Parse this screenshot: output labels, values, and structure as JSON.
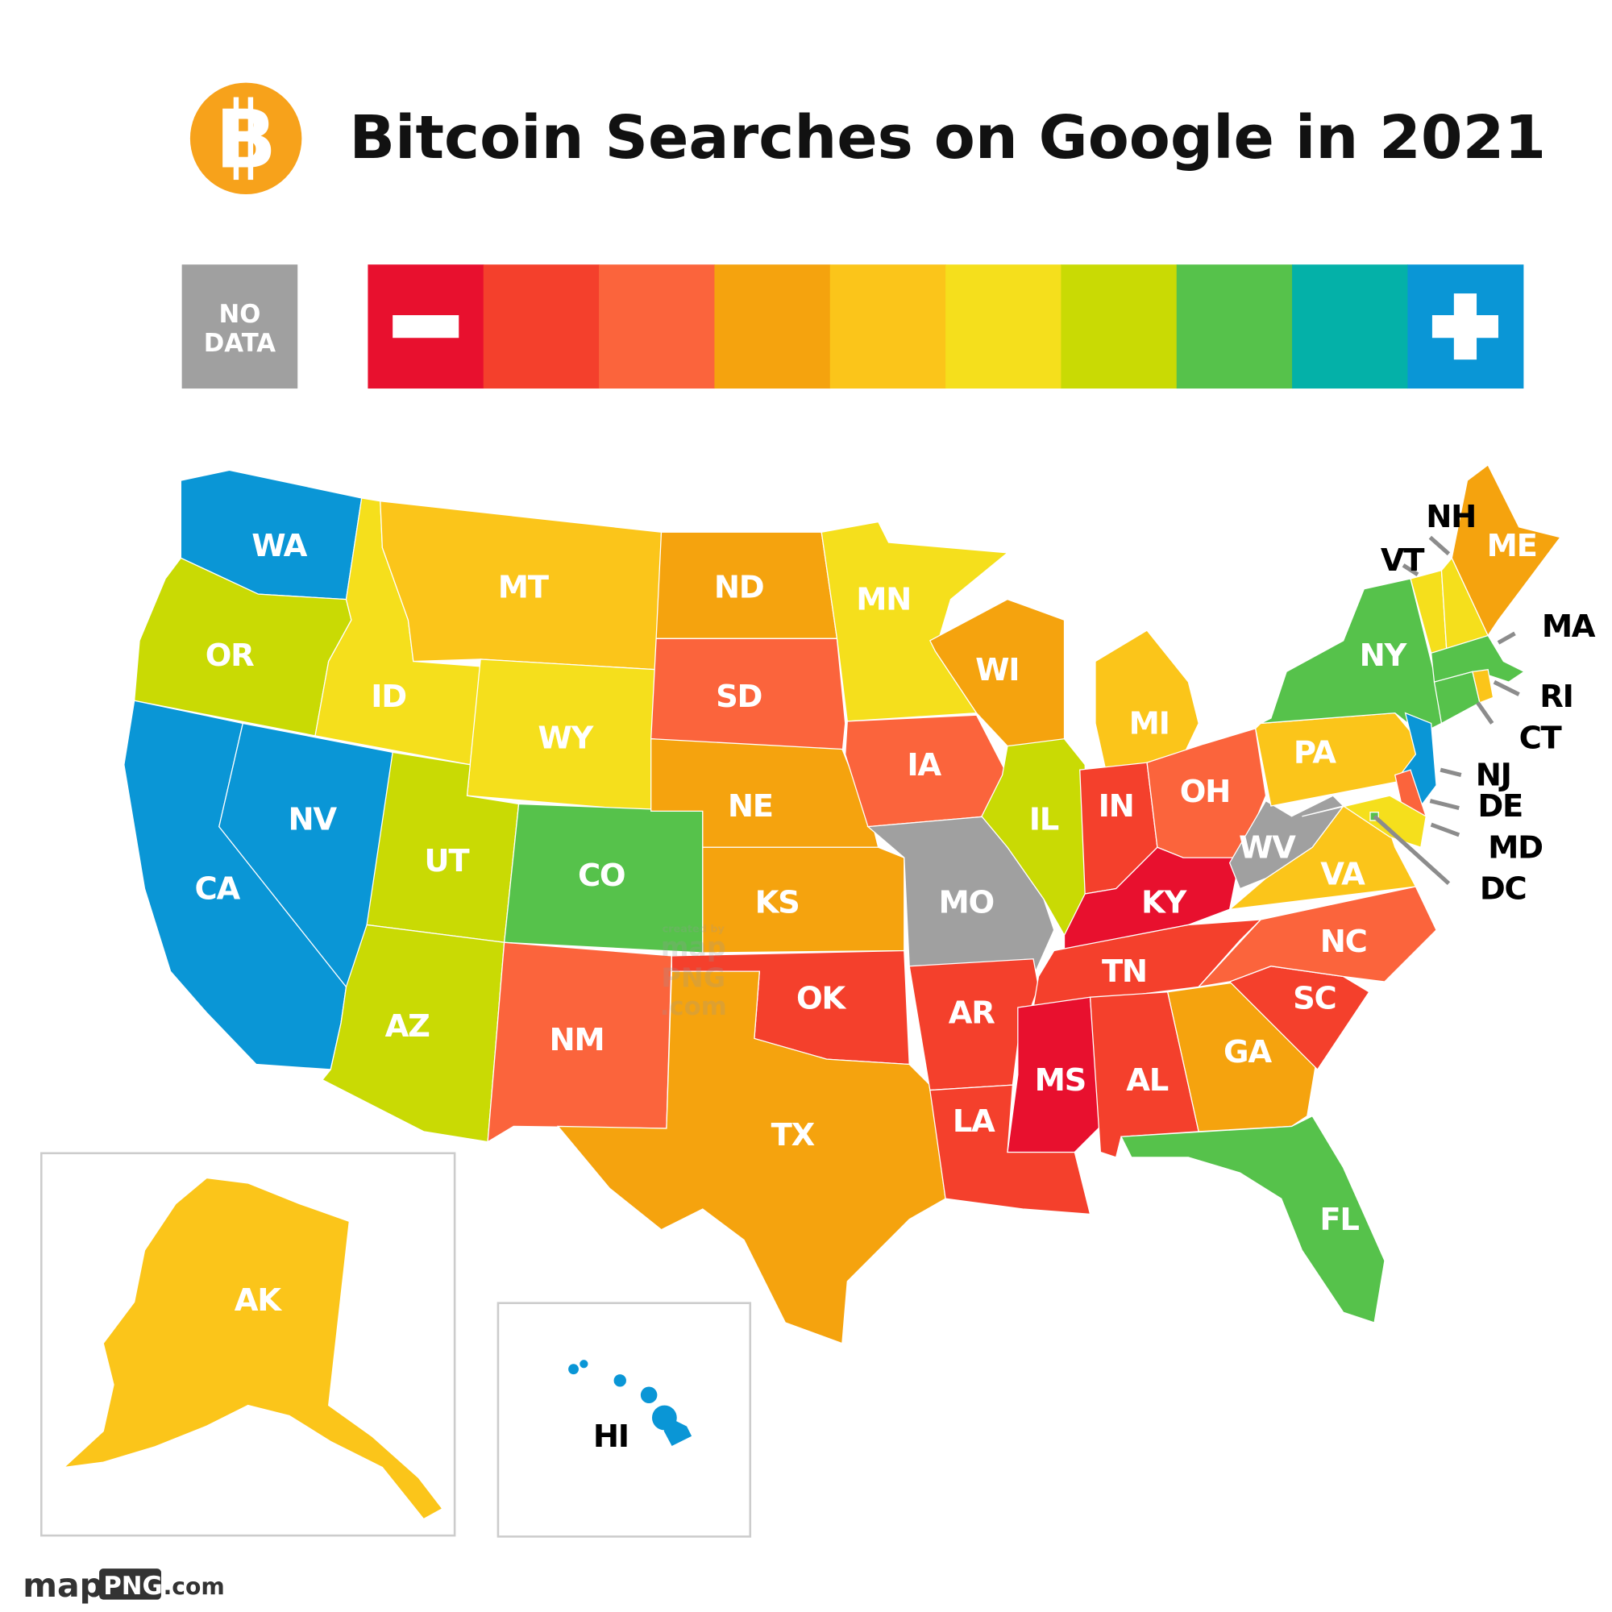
{
  "title": "Bitcoin Searches on Google in 2021",
  "logo": {
    "icon": "bitcoin-icon",
    "glyph": "B",
    "color": "#F7A21B"
  },
  "legend": {
    "no_data_label_line1": "NO",
    "no_data_label_line2": "DATA",
    "no_data_color": "#A0A0A0",
    "scale_colors": [
      "#E8102E",
      "#F4402C",
      "#FB643C",
      "#F5A30E",
      "#FBC51A",
      "#F5DF1C",
      "#C9DA04",
      "#56C24B",
      "#04B1A8",
      "#0A96D6"
    ],
    "low_icon": "minus-icon",
    "high_icon": "plus-icon"
  },
  "states": [
    {
      "code": "WA",
      "level": 9
    },
    {
      "code": "OR",
      "level": 6
    },
    {
      "code": "CA",
      "level": 9
    },
    {
      "code": "NV",
      "level": 9
    },
    {
      "code": "ID",
      "level": 5
    },
    {
      "code": "MT",
      "level": 4
    },
    {
      "code": "WY",
      "level": 5
    },
    {
      "code": "UT",
      "level": 6
    },
    {
      "code": "AZ",
      "level": 6
    },
    {
      "code": "CO",
      "level": 7
    },
    {
      "code": "NM",
      "level": 2
    },
    {
      "code": "ND",
      "level": 3
    },
    {
      "code": "SD",
      "level": 2
    },
    {
      "code": "NE",
      "level": 3
    },
    {
      "code": "KS",
      "level": 3
    },
    {
      "code": "OK",
      "level": 1
    },
    {
      "code": "TX",
      "level": 3
    },
    {
      "code": "MN",
      "level": 5
    },
    {
      "code": "IA",
      "level": 2
    },
    {
      "code": "MO",
      "level": null
    },
    {
      "code": "AR",
      "level": 1
    },
    {
      "code": "LA",
      "level": 1
    },
    {
      "code": "WI",
      "level": 3
    },
    {
      "code": "IL",
      "level": 6
    },
    {
      "code": "MI",
      "level": 4
    },
    {
      "code": "IN",
      "level": 1
    },
    {
      "code": "OH",
      "level": 2
    },
    {
      "code": "KY",
      "level": 0
    },
    {
      "code": "TN",
      "level": 1
    },
    {
      "code": "MS",
      "level": 0
    },
    {
      "code": "AL",
      "level": 1
    },
    {
      "code": "GA",
      "level": 3
    },
    {
      "code": "FL",
      "level": 7
    },
    {
      "code": "SC",
      "level": 1
    },
    {
      "code": "NC",
      "level": 2
    },
    {
      "code": "VA",
      "level": 4
    },
    {
      "code": "WV",
      "level": null
    },
    {
      "code": "PA",
      "level": 4
    },
    {
      "code": "NY",
      "level": 7
    },
    {
      "code": "NJ",
      "level": 9
    },
    {
      "code": "DE",
      "level": 2
    },
    {
      "code": "MD",
      "level": 5
    },
    {
      "code": "DC",
      "level": 7
    },
    {
      "code": "VT",
      "level": 5
    },
    {
      "code": "NH",
      "level": 5
    },
    {
      "code": "ME",
      "level": 3
    },
    {
      "code": "MA",
      "level": 7
    },
    {
      "code": "CT",
      "level": 7
    },
    {
      "code": "RI",
      "level": 4
    },
    {
      "code": "AK",
      "level": 4
    },
    {
      "code": "HI",
      "level": 9
    }
  ],
  "watermark": {
    "line1": "created by",
    "line2": "map",
    "line3": "PNG",
    "line4": ".com"
  },
  "footer": {
    "brand_part1": "map",
    "brand_part2": "PNG",
    "brand_part3": ".com"
  }
}
